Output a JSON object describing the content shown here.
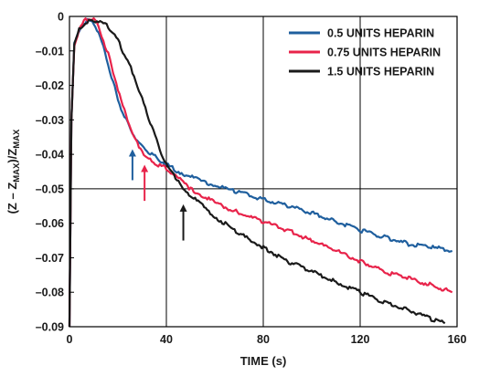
{
  "chart_data": {
    "type": "line",
    "title": "",
    "xlabel": "TIME (s)",
    "ylabel": {
      "prefix": "(Z – Z",
      "sub1": "MAX",
      "middle": ")/Z",
      "sub2": "MAX"
    },
    "xlim": [
      0,
      160
    ],
    "ylim": [
      -0.09,
      0
    ],
    "x_ticks": [
      0,
      40,
      80,
      120,
      160
    ],
    "x_tick_labels": [
      "0",
      "40",
      "80",
      "120",
      "160"
    ],
    "y_ticks": [
      0,
      -0.01,
      -0.02,
      -0.03,
      -0.04,
      -0.05,
      -0.06,
      -0.07,
      -0.08,
      -0.09
    ],
    "y_tick_labels": [
      "0",
      "–0.01",
      "–0.02",
      "–0.03",
      "–0.04",
      "–0.05",
      "–0.06",
      "–0.07",
      "–0.08",
      "–0.09"
    ],
    "grid": true,
    "legend_position": "top-right",
    "series": [
      {
        "name": "0.5 UNITS HEPARIN",
        "color": "#1f5f9e",
        "x": [
          0,
          0.8,
          2,
          4,
          6,
          8,
          10,
          12,
          14,
          16,
          18,
          20,
          22,
          24,
          26,
          28,
          30,
          32,
          34,
          36,
          38,
          40,
          45,
          50,
          55,
          60,
          70,
          80,
          90,
          100,
          110,
          120,
          130,
          140,
          150,
          158
        ],
        "y": [
          -0.09,
          -0.03,
          -0.008,
          -0.004,
          -0.002,
          -0.001,
          -0.002,
          -0.005,
          -0.009,
          -0.014,
          -0.019,
          -0.024,
          -0.028,
          -0.031,
          -0.034,
          -0.036,
          -0.038,
          -0.039,
          -0.04,
          -0.041,
          -0.042,
          -0.043,
          -0.045,
          -0.0465,
          -0.048,
          -0.049,
          -0.051,
          -0.053,
          -0.055,
          -0.057,
          -0.0595,
          -0.062,
          -0.064,
          -0.066,
          -0.067,
          -0.068
        ]
      },
      {
        "name": "0.75 UNITS HEPARIN",
        "color": "#e8234a",
        "x": [
          0,
          0.8,
          2,
          4,
          6,
          8,
          10,
          12,
          14,
          16,
          18,
          20,
          22,
          24,
          26,
          28,
          30,
          32,
          34,
          36,
          38,
          40,
          45,
          50,
          55,
          60,
          70,
          80,
          90,
          100,
          110,
          120,
          130,
          140,
          150,
          158
        ],
        "y": [
          -0.09,
          -0.03,
          -0.008,
          -0.004,
          -0.0015,
          -0.0005,
          -0.001,
          -0.003,
          -0.007,
          -0.011,
          -0.016,
          -0.021,
          -0.026,
          -0.03,
          -0.034,
          -0.037,
          -0.039,
          -0.041,
          -0.042,
          -0.043,
          -0.0435,
          -0.044,
          -0.047,
          -0.05,
          -0.052,
          -0.054,
          -0.057,
          -0.0595,
          -0.062,
          -0.065,
          -0.068,
          -0.071,
          -0.074,
          -0.076,
          -0.078,
          -0.08
        ]
      },
      {
        "name": "1.5 UNITS HEPARIN",
        "color": "#1a1a1a",
        "x": [
          0,
          0.8,
          2,
          4,
          6,
          8,
          10,
          12,
          14,
          16,
          18,
          20,
          22,
          24,
          26,
          28,
          30,
          32,
          34,
          36,
          38,
          40,
          45,
          50,
          55,
          60,
          70,
          80,
          90,
          100,
          110,
          120,
          130,
          140,
          150,
          155
        ],
        "y": [
          -0.09,
          -0.03,
          -0.008,
          -0.004,
          -0.002,
          -0.0015,
          -0.001,
          -0.0015,
          -0.002,
          -0.003,
          -0.005,
          -0.007,
          -0.01,
          -0.013,
          -0.016,
          -0.02,
          -0.024,
          -0.028,
          -0.032,
          -0.036,
          -0.04,
          -0.043,
          -0.048,
          -0.052,
          -0.055,
          -0.058,
          -0.063,
          -0.067,
          -0.071,
          -0.074,
          -0.077,
          -0.08,
          -0.083,
          -0.085,
          -0.088,
          -0.089
        ]
      }
    ],
    "annotations": [
      {
        "type": "arrow",
        "series": "0.5 UNITS HEPARIN",
        "x": 26,
        "y_from": -0.0475,
        "y_to": -0.0385,
        "color": "#1f5f9e"
      },
      {
        "type": "arrow",
        "series": "0.75 UNITS HEPARIN",
        "x": 31,
        "y_from": -0.0535,
        "y_to": -0.043,
        "color": "#e8234a"
      },
      {
        "type": "arrow",
        "series": "1.5 UNITS HEPARIN",
        "x": 47,
        "y_from": -0.065,
        "y_to": -0.0545,
        "color": "#1a1a1a"
      }
    ]
  }
}
